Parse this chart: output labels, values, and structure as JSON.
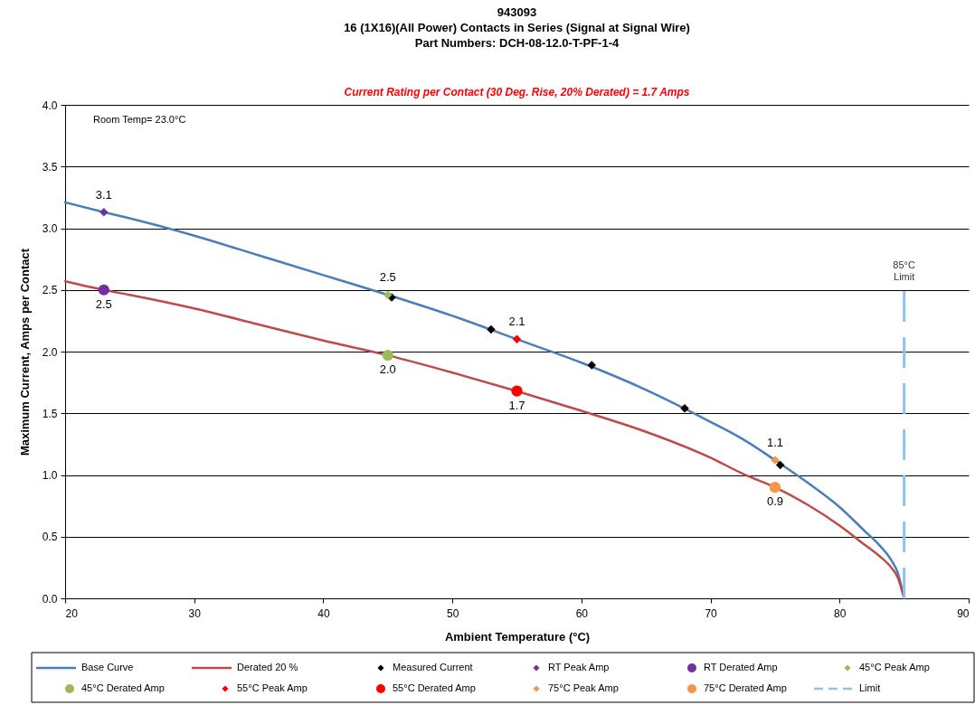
{
  "chart_data": {
    "type": "line",
    "title": "943093\n16 (1X16)(All Power) Contacts in Series (Signal at Signal Wire)\nPart Numbers: DCH-08-12.0-T-PF-1-4",
    "subtitle": "Current Rating per Contact (30 Deg. Rise, 20% Derated) = 1.7 Amps",
    "xlabel": "Ambient Temperature (°C)",
    "ylabel": "Maximum Current, Amps per Contact",
    "annotations": [
      "Room Temp= 23.0°C",
      {
        "text": "85°C Limit",
        "x": 85,
        "y": 2.5
      }
    ],
    "xlim": [
      20,
      90
    ],
    "xticks": [
      20,
      30,
      40,
      50,
      60,
      70,
      80,
      90
    ],
    "ylim": [
      0,
      4
    ],
    "yticks": [
      {
        "value": 0,
        "label": "0.0"
      },
      {
        "value": 0.5,
        "label": "0.5"
      },
      {
        "value": 1,
        "label": "1.0"
      },
      {
        "value": 1.5,
        "label": "1.5"
      },
      {
        "value": 2,
        "label": "2.0"
      },
      {
        "value": 2.5,
        "label": "2.5"
      },
      {
        "value": 3,
        "label": "3.0"
      },
      {
        "value": 3.5,
        "label": "3.5"
      },
      {
        "value": 4,
        "label": "4.0"
      }
    ],
    "grid": "y",
    "legend": "bottom",
    "series": [
      {
        "name": "Base Curve",
        "color": "#4a7ebb",
        "x": [
          20,
          23,
          25,
          30,
          35,
          40,
          45,
          50,
          55,
          60,
          65,
          70,
          72.5,
          75,
          77.5,
          80,
          82,
          83,
          84,
          84.5,
          85
        ],
        "values": [
          3.21,
          3.13,
          3.08,
          2.94,
          2.78,
          2.62,
          2.46,
          2.29,
          2.1,
          1.91,
          1.69,
          1.43,
          1.29,
          1.12,
          0.94,
          0.74,
          0.54,
          0.44,
          0.31,
          0.21,
          0
        ]
      },
      {
        "name": "Derated 20 %",
        "color": "#be4b48",
        "x": [
          20,
          23,
          25,
          30,
          35,
          40,
          45,
          50,
          55,
          60,
          65,
          70,
          72.5,
          75,
          77.5,
          80,
          82,
          83,
          84,
          84.5,
          85
        ],
        "values": [
          2.57,
          2.5,
          2.46,
          2.35,
          2.22,
          2.09,
          1.97,
          1.83,
          1.68,
          1.52,
          1.35,
          1.14,
          1.01,
          0.9,
          0.76,
          0.59,
          0.43,
          0.35,
          0.25,
          0.17,
          0
        ]
      },
      {
        "name": "Measured Current",
        "type": "scatter",
        "marker": "diamond",
        "color": "#000000",
        "x": [
          45.3,
          53.0,
          60.8,
          68.0,
          75.4
        ],
        "values": [
          2.44,
          2.18,
          1.89,
          1.54,
          1.08
        ]
      },
      {
        "name": "RT Peak Amp",
        "type": "scatter",
        "marker": "diamond",
        "color": "#7030a0",
        "x": [
          23
        ],
        "values": [
          3.13
        ],
        "value_labels": [
          "3.1"
        ]
      },
      {
        "name": "RT Derated Amp",
        "type": "scatter",
        "marker": "circle",
        "color": "#7030a0",
        "x": [
          23
        ],
        "values": [
          2.5
        ],
        "value_labels": [
          "2.5"
        ]
      },
      {
        "name": "45°C Peak Amp",
        "type": "scatter",
        "marker": "diamond",
        "color": "#9bbb59",
        "x": [
          45
        ],
        "values": [
          2.46
        ],
        "value_labels": [
          "2.5"
        ]
      },
      {
        "name": "45°C Derated Amp",
        "type": "scatter",
        "marker": "circle",
        "color": "#9bbb59",
        "x": [
          45
        ],
        "values": [
          1.97
        ],
        "value_labels": [
          "2.0"
        ]
      },
      {
        "name": "55°C Peak Amp",
        "type": "scatter",
        "marker": "diamond",
        "color": "#ff0000",
        "x": [
          55
        ],
        "values": [
          2.1
        ],
        "value_labels": [
          "2.1"
        ]
      },
      {
        "name": "55°C Derated Amp",
        "type": "scatter",
        "marker": "circle",
        "color": "#ff0000",
        "x": [
          55
        ],
        "values": [
          1.68
        ],
        "value_labels": [
          "1.7"
        ]
      },
      {
        "name": "75°C Peak Amp",
        "type": "scatter",
        "marker": "diamond",
        "color": "#f79646",
        "x": [
          75
        ],
        "values": [
          1.12
        ],
        "value_labels": [
          "1.1"
        ]
      },
      {
        "name": "75°C Derated Amp",
        "type": "scatter",
        "marker": "circle",
        "color": "#f79646",
        "x": [
          75
        ],
        "values": [
          0.9
        ],
        "value_labels": [
          "0.9"
        ]
      },
      {
        "name": "Limit",
        "line_style": "dashed",
        "color": "#8dc3f2",
        "x": [
          85,
          85
        ],
        "values": [
          0,
          2.5
        ]
      }
    ]
  }
}
